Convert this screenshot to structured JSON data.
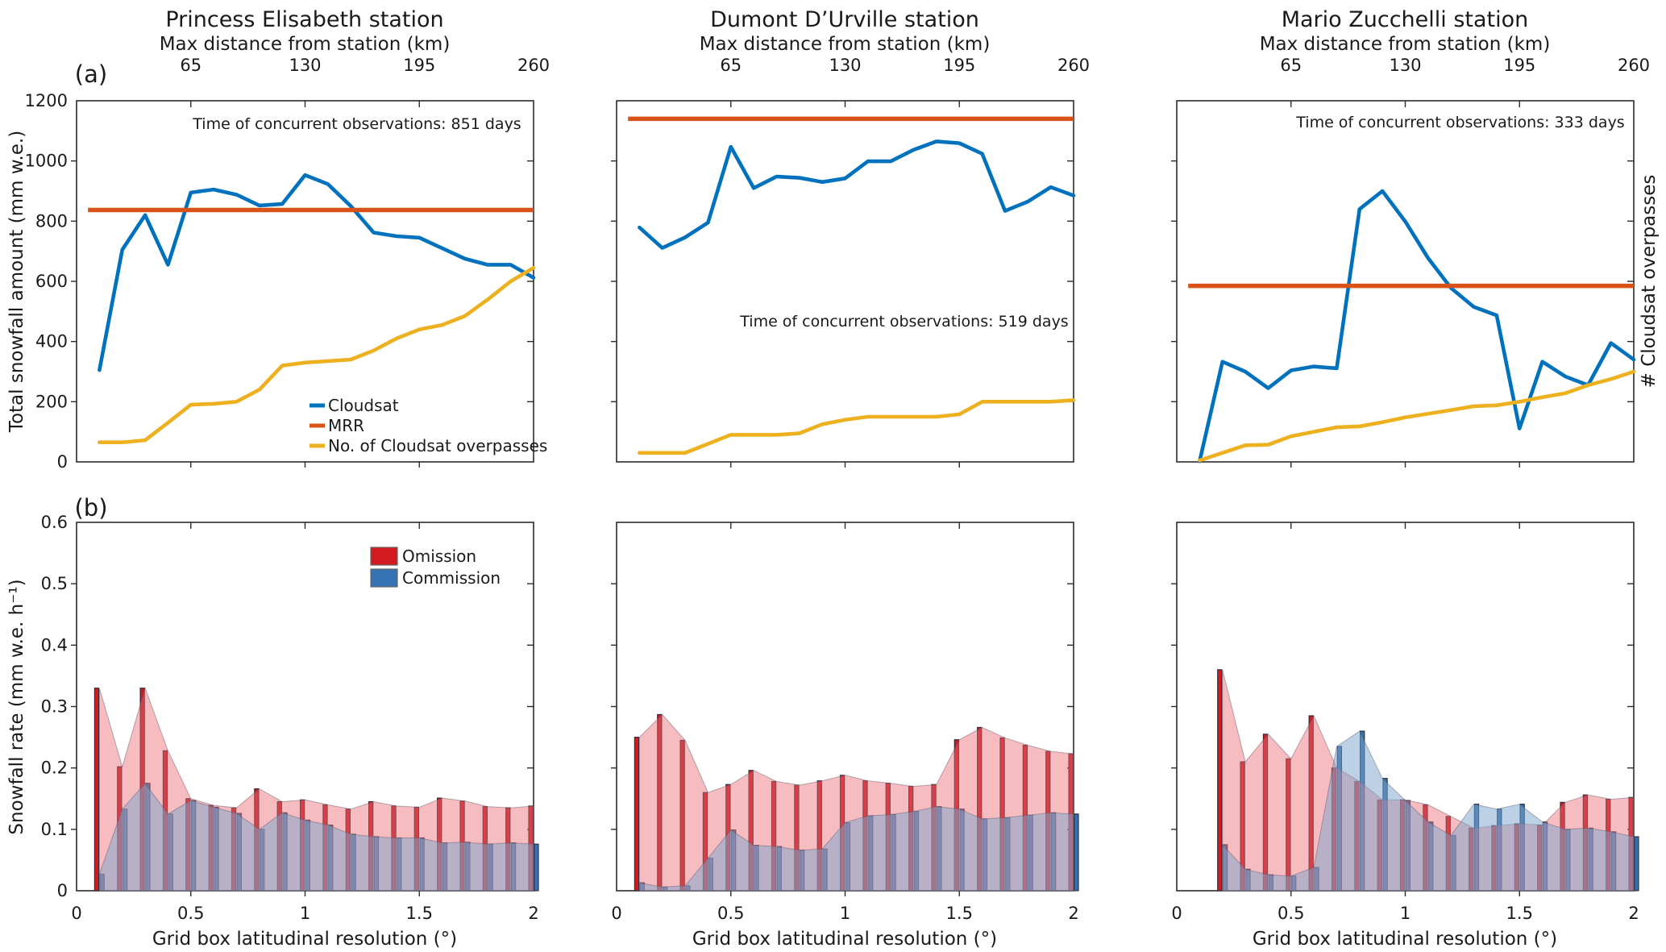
{
  "figure": {
    "panel_labels": {
      "a": "(a)",
      "b": "(b)"
    },
    "row_a": {
      "y_axis_label": "Total snowfall amount (mm w.e.)",
      "right_axis_label": "# Cloudsat overpasses",
      "top_axis_label": "Max distance from station (km)",
      "top_axis_ticks": {
        "labels": [
          "65",
          "130",
          "195",
          "260"
        ],
        "positions": [
          0.5,
          1.0,
          1.5,
          2.0
        ]
      },
      "y_ticks": {
        "labels": [
          "0",
          "200",
          "400",
          "600",
          "800",
          "1000",
          "1200"
        ],
        "values": [
          0,
          200,
          400,
          600,
          800,
          1000,
          1200
        ]
      },
      "legend": [
        {
          "label": "Cloudsat",
          "color_key": "cloudsat"
        },
        {
          "label": "MRR",
          "color_key": "mrr"
        },
        {
          "label": "No. of Cloudsat overpasses",
          "color_key": "overpasses"
        }
      ]
    },
    "row_b": {
      "y_axis_label": "Snowfall rate (mm w.e. h⁻¹)",
      "x_axis_label": "Grid box latitudinal resolution (°)",
      "x_ticks": {
        "labels": [
          "0",
          "0.5",
          "1",
          "1.5",
          "2"
        ],
        "values": [
          0,
          0.5,
          1.0,
          1.5,
          2.0
        ]
      },
      "y_ticks": {
        "labels": [
          "0",
          "0.1",
          "0.2",
          "0.3",
          "0.4",
          "0.5",
          "0.6"
        ],
        "values": [
          0,
          0.1,
          0.2,
          0.3,
          0.4,
          0.5,
          0.6
        ]
      },
      "legend": [
        {
          "label": "Omission",
          "color_key": "omission"
        },
        {
          "label": "Commission",
          "color_key": "commission"
        }
      ]
    },
    "colors": {
      "cloudsat": "#0072BD",
      "mrr": "#D95319",
      "overpasses": "#EDB120",
      "omission": "#D21B20",
      "commission": "#3572B3",
      "omission_area": "rgba(236,106,116,0.45)",
      "commission_area": "rgba(121,164,205,0.50)",
      "bar_edge": "#262C3A",
      "axis": "#2B2B2B",
      "text": "#1A1A1A"
    }
  },
  "chart_data": [
    {
      "type": "line",
      "row": "a",
      "panel": 0,
      "station": "Princess Elisabeth station",
      "annotation": "Time of concurrent observations: 851 days",
      "xlabel_top": "Max distance from station (km)",
      "xlim": [
        0,
        2
      ],
      "ylim": [
        0,
        1200
      ],
      "x": [
        0.1,
        0.2,
        0.3,
        0.4,
        0.5,
        0.6,
        0.7,
        0.8,
        0.9,
        1.0,
        1.1,
        1.2,
        1.3,
        1.4,
        1.5,
        1.6,
        1.7,
        1.8,
        1.9,
        2.0
      ],
      "series": [
        {
          "name": "Cloudsat",
          "values": [
            305,
            705,
            820,
            655,
            895,
            905,
            888,
            852,
            857,
            953,
            923,
            850,
            762,
            750,
            745,
            710,
            675,
            655,
            655,
            612
          ]
        },
        {
          "name": "MRR",
          "constant": 837
        },
        {
          "name": "No. of Cloudsat overpasses",
          "values": [
            65,
            65,
            72,
            130,
            190,
            193,
            200,
            240,
            320,
            330,
            335,
            340,
            370,
            410,
            440,
            455,
            485,
            540,
            600,
            645
          ]
        }
      ]
    },
    {
      "type": "line",
      "row": "a",
      "panel": 1,
      "station": "Dumont D’Urville station",
      "annotation": "Time of concurrent observations: 519 days",
      "xlabel_top": "Max distance from station (km)",
      "xlim": [
        0,
        2
      ],
      "ylim": [
        0,
        1200
      ],
      "x": [
        0.1,
        0.2,
        0.3,
        0.4,
        0.5,
        0.6,
        0.7,
        0.8,
        0.9,
        1.0,
        1.1,
        1.2,
        1.3,
        1.4,
        1.5,
        1.6,
        1.7,
        1.8,
        1.9,
        2.0
      ],
      "series": [
        {
          "name": "Cloudsat",
          "values": [
            779,
            711,
            746,
            795,
            1047,
            910,
            948,
            944,
            930,
            942,
            999,
            999,
            1037,
            1065,
            1059,
            1024,
            834,
            865,
            913,
            885
          ]
        },
        {
          "name": "MRR",
          "constant": 1140
        },
        {
          "name": "No. of Cloudsat overpasses",
          "values": [
            30,
            30,
            30,
            60,
            90,
            90,
            90,
            95,
            125,
            140,
            150,
            150,
            150,
            150,
            158,
            200,
            200,
            200,
            200,
            205
          ]
        }
      ]
    },
    {
      "type": "line",
      "row": "a",
      "panel": 2,
      "station": "Mario Zucchelli station",
      "annotation": "Time of concurrent observations: 333 days",
      "xlabel_top": "Max distance from station (km)",
      "xlim": [
        0,
        2
      ],
      "ylim": [
        0,
        1200
      ],
      "x": [
        0.1,
        0.2,
        0.3,
        0.4,
        0.5,
        0.6,
        0.7,
        0.8,
        0.9,
        1.0,
        1.1,
        1.2,
        1.3,
        1.4,
        1.5,
        1.6,
        1.7,
        1.8,
        1.9,
        2.0
      ],
      "series": [
        {
          "name": "Cloudsat",
          "values": [
            2,
            333,
            300,
            245,
            304,
            317,
            311,
            840,
            900,
            799,
            677,
            578,
            515,
            487,
            111,
            333,
            284,
            255,
            395,
            340
          ]
        },
        {
          "name": "MRR",
          "constant": 585
        },
        {
          "name": "No. of Cloudsat overpasses",
          "values": [
            5,
            30,
            55,
            57,
            85,
            100,
            115,
            118,
            132,
            148,
            160,
            172,
            185,
            188,
            200,
            215,
            228,
            255,
            275,
            300
          ]
        }
      ]
    },
    {
      "type": "bar-area",
      "row": "b",
      "panel": 0,
      "station": "Princess Elisabeth station",
      "xlim": [
        0,
        2
      ],
      "ylim": [
        0,
        0.6
      ],
      "x": [
        0.1,
        0.2,
        0.3,
        0.4,
        0.5,
        0.6,
        0.7,
        0.8,
        0.9,
        1.0,
        1.1,
        1.2,
        1.3,
        1.4,
        1.5,
        1.6,
        1.7,
        1.8,
        1.9,
        2.0
      ],
      "series": [
        {
          "name": "Omission",
          "values": [
            0.33,
            0.202,
            0.33,
            0.228,
            0.15,
            0.139,
            0.135,
            0.166,
            0.145,
            0.148,
            0.14,
            0.133,
            0.145,
            0.138,
            0.136,
            0.151,
            0.146,
            0.137,
            0.135,
            0.138
          ]
        },
        {
          "name": "Commission",
          "values": [
            0.027,
            0.133,
            0.175,
            0.125,
            0.147,
            0.136,
            0.126,
            0.1,
            0.127,
            0.115,
            0.107,
            0.092,
            0.088,
            0.086,
            0.086,
            0.078,
            0.079,
            0.076,
            0.078,
            0.076
          ]
        }
      ]
    },
    {
      "type": "bar-area",
      "row": "b",
      "panel": 1,
      "station": "Dumont D’Urville station",
      "xlim": [
        0,
        2
      ],
      "ylim": [
        0,
        0.6
      ],
      "x": [
        0.1,
        0.2,
        0.3,
        0.4,
        0.5,
        0.6,
        0.7,
        0.8,
        0.9,
        1.0,
        1.1,
        1.2,
        1.3,
        1.4,
        1.5,
        1.6,
        1.7,
        1.8,
        1.9,
        2.0
      ],
      "series": [
        {
          "name": "Omission",
          "values": [
            0.25,
            0.287,
            0.245,
            0.16,
            0.173,
            0.196,
            0.178,
            0.172,
            0.179,
            0.188,
            0.179,
            0.175,
            0.17,
            0.173,
            0.246,
            0.266,
            0.249,
            0.237,
            0.227,
            0.223
          ]
        },
        {
          "name": "Commission",
          "values": [
            0.013,
            0.006,
            0.008,
            0.053,
            0.099,
            0.074,
            0.072,
            0.066,
            0.068,
            0.111,
            0.122,
            0.124,
            0.129,
            0.137,
            0.133,
            0.117,
            0.119,
            0.123,
            0.127,
            0.125
          ]
        }
      ]
    },
    {
      "type": "bar-area",
      "row": "b",
      "panel": 2,
      "station": "Mario Zucchelli station",
      "xlim": [
        0,
        2
      ],
      "ylim": [
        0,
        0.6
      ],
      "x": [
        0.1,
        0.2,
        0.3,
        0.4,
        0.5,
        0.6,
        0.7,
        0.8,
        0.9,
        1.0,
        1.1,
        1.2,
        1.3,
        1.4,
        1.5,
        1.6,
        1.7,
        1.8,
        1.9,
        2.0
      ],
      "series": [
        {
          "name": "Omission",
          "values": [
            null,
            0.36,
            0.21,
            0.255,
            0.215,
            0.285,
            0.2,
            0.178,
            0.148,
            0.148,
            0.14,
            0.121,
            0.102,
            0.106,
            0.109,
            0.107,
            0.144,
            0.156,
            0.149,
            0.152
          ]
        },
        {
          "name": "Commission",
          "values": [
            null,
            0.075,
            0.035,
            0.026,
            0.024,
            0.038,
            0.235,
            0.26,
            0.183,
            0.147,
            0.112,
            0.09,
            0.141,
            0.133,
            0.141,
            0.112,
            0.1,
            0.102,
            0.096,
            0.088
          ]
        }
      ]
    }
  ]
}
